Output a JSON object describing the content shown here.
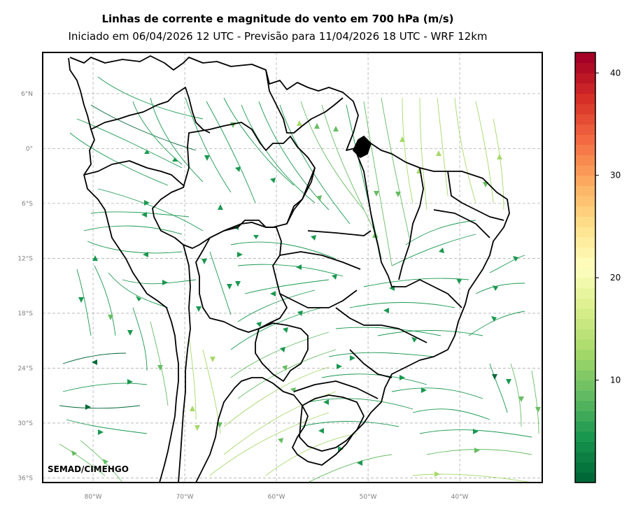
{
  "title": "Linhas de corrente e magnitude do vento em 700 hPa (m/s)",
  "subtitle": "Iniciado em 06/04/2026 12 UTC - Previsão para 11/04/2026 18 UTC - WRF 12km",
  "credit": "SEMAD/CIMEHGO",
  "map": {
    "lon_range": [
      -85.5,
      -31
    ],
    "lat_range": [
      -36.5,
      10.5
    ],
    "lat_ticks": [
      {
        "value": 6,
        "label": "6°N"
      },
      {
        "value": 0,
        "label": "0°"
      },
      {
        "value": -6,
        "label": "6°S"
      },
      {
        "value": -12,
        "label": "12°S"
      },
      {
        "value": -18,
        "label": "18°S"
      },
      {
        "value": -24,
        "label": "24°S"
      },
      {
        "value": -30,
        "label": "30°S"
      },
      {
        "value": -36,
        "label": "36°S"
      }
    ],
    "lon_ticks": [
      {
        "value": -80,
        "label": "80°W"
      },
      {
        "value": -70,
        "label": "70°W"
      },
      {
        "value": -60,
        "label": "60°W"
      },
      {
        "value": -50,
        "label": "50°W"
      },
      {
        "value": -40,
        "label": "40°W"
      }
    ],
    "gridlines": true,
    "grid_color": "#b0b0b0"
  },
  "colorbar": {
    "colormap": "RdYlGn_r",
    "range": [
      0,
      42
    ],
    "ticks": [
      {
        "value": 10,
        "label": "10"
      },
      {
        "value": 20,
        "label": "20"
      },
      {
        "value": 30,
        "label": "30"
      },
      {
        "value": 40,
        "label": "40"
      }
    ],
    "colors": [
      "#006837",
      "#1a9850",
      "#66bd63",
      "#a6d96a",
      "#d9ef8b",
      "#ffffbf",
      "#fee08b",
      "#fdae61",
      "#f46d43",
      "#d73027",
      "#a50026"
    ]
  }
}
